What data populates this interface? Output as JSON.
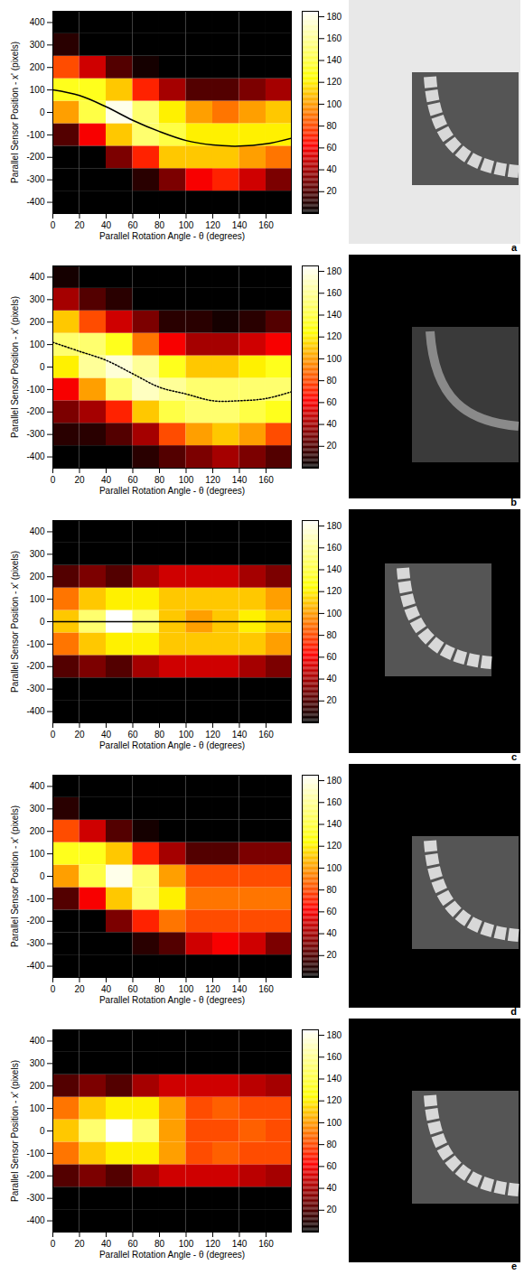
{
  "chart_data": [
    {
      "type": "heatmap",
      "panel_label": "a",
      "x_label": "Parallel Rotation Angle - θ (degrees)",
      "y_label": "Parallel Sensor Position - x' (pixels)",
      "xlim": [
        0,
        179
      ],
      "ylim": [
        -450,
        450
      ],
      "xticks": [
        0,
        20,
        40,
        60,
        80,
        100,
        120,
        140,
        160
      ],
      "yticks": [
        -400,
        -300,
        -200,
        -100,
        0,
        100,
        200,
        300,
        400
      ],
      "x_bins": [
        0,
        20,
        40,
        60,
        80,
        100,
        120,
        140,
        160,
        180
      ],
      "y_bins": [
        -450,
        -350,
        -250,
        -150,
        -50,
        50,
        150,
        250,
        350,
        450
      ],
      "cells": [
        [
          0,
          0,
          0,
          20,
          100,
          130,
          80,
          10,
          0
        ],
        [
          0,
          0,
          0,
          60,
          140,
          130,
          50,
          0,
          0
        ],
        [
          0,
          0,
          30,
          110,
          180,
          110,
          20,
          0,
          0
        ],
        [
          0,
          10,
          70,
          150,
          150,
          70,
          5,
          0,
          0
        ],
        [
          0,
          30,
          110,
          140,
          120,
          40,
          0,
          0,
          0
        ],
        [
          0,
          60,
          110,
          120,
          100,
          20,
          0,
          0,
          0
        ],
        [
          0,
          70,
          110,
          120,
          90,
          20,
          0,
          0,
          0
        ],
        [
          0,
          50,
          100,
          120,
          100,
          30,
          0,
          0,
          0
        ],
        [
          0,
          30,
          90,
          120,
          110,
          40,
          0,
          0,
          0
        ]
      ],
      "colorbar": {
        "lim": [
          0,
          185
        ],
        "ticks": [
          20,
          40,
          60,
          80,
          100,
          120,
          140,
          160,
          180
        ],
        "colors": [
          "#000000",
          "#ff0000",
          "#ffff00",
          "#ffffff"
        ]
      },
      "series": [
        {
          "type": "line",
          "color": "#000000",
          "line_style": "solid",
          "x": [
            0,
            20,
            40,
            60,
            80,
            100,
            120,
            140,
            160,
            179
          ],
          "values": [
            100,
            75,
            25,
            -35,
            -85,
            -125,
            -145,
            -150,
            -140,
            -115
          ]
        }
      ]
    },
    {
      "type": "heatmap",
      "panel_label": "b",
      "x_label": "Parallel Rotation Angle - θ (degrees)",
      "y_label": "Parallel Sensor Position - x' (pixels)",
      "xlim": [
        0,
        179
      ],
      "ylim": [
        -450,
        450
      ],
      "xticks": [
        0,
        20,
        40,
        60,
        80,
        100,
        120,
        140,
        160
      ],
      "yticks": [
        -400,
        -300,
        -200,
        -100,
        0,
        100,
        200,
        300,
        400
      ],
      "x_bins": [
        0,
        20,
        40,
        60,
        80,
        100,
        120,
        140,
        160,
        180
      ],
      "y_bins": [
        -450,
        -350,
        -250,
        -150,
        -50,
        50,
        150,
        250,
        350,
        450
      ],
      "cells": [
        [
          0,
          10,
          30,
          60,
          120,
          150,
          110,
          40,
          5
        ],
        [
          0,
          10,
          40,
          100,
          160,
          150,
          80,
          20,
          0
        ],
        [
          0,
          20,
          70,
          150,
          175,
          130,
          50,
          10,
          0
        ],
        [
          10,
          40,
          110,
          170,
          160,
          90,
          30,
          0,
          0
        ],
        [
          20,
          80,
          140,
          160,
          130,
          60,
          10,
          0,
          0
        ],
        [
          30,
          100,
          150,
          150,
          110,
          40,
          10,
          0,
          0
        ],
        [
          40,
          110,
          150,
          150,
          110,
          40,
          5,
          0,
          0
        ],
        [
          30,
          100,
          140,
          150,
          120,
          50,
          10,
          0,
          0
        ],
        [
          20,
          80,
          130,
          150,
          130,
          60,
          20,
          0,
          0
        ]
      ],
      "colorbar": {
        "lim": [
          0,
          185
        ],
        "ticks": [
          20,
          40,
          60,
          80,
          100,
          120,
          140,
          160,
          180
        ],
        "colors": [
          "#000000",
          "#ff0000",
          "#ffff00",
          "#ffffff"
        ]
      },
      "series": [
        {
          "type": "line",
          "color": "#000000",
          "line_style": "dotted",
          "x": [
            0,
            20,
            40,
            60,
            80,
            100,
            120,
            140,
            160,
            179
          ],
          "values": [
            110,
            70,
            30,
            -30,
            -90,
            -120,
            -150,
            -150,
            -140,
            -110
          ]
        }
      ]
    },
    {
      "type": "heatmap",
      "panel_label": "c",
      "x_label": "Parallel Rotation Angle - θ (degrees)",
      "y_label": "Parallel Sensor Position - x' (pixels)",
      "xlim": [
        0,
        179
      ],
      "ylim": [
        -450,
        450
      ],
      "xticks": [
        0,
        20,
        40,
        60,
        80,
        100,
        120,
        140,
        160
      ],
      "yticks": [
        -400,
        -300,
        -200,
        -100,
        0,
        100,
        200,
        300,
        400
      ],
      "x_bins": [
        0,
        20,
        40,
        60,
        80,
        100,
        120,
        140,
        160,
        180
      ],
      "y_bins": [
        -450,
        -350,
        -250,
        -150,
        -50,
        50,
        150,
        250,
        350,
        450
      ],
      "cells": [
        [
          0,
          0,
          20,
          90,
          110,
          90,
          20,
          0,
          0
        ],
        [
          0,
          0,
          30,
          110,
          150,
          110,
          30,
          0,
          0
        ],
        [
          0,
          0,
          20,
          120,
          185,
          120,
          20,
          0,
          0
        ],
        [
          0,
          0,
          40,
          120,
          150,
          120,
          40,
          0,
          0
        ],
        [
          0,
          0,
          50,
          110,
          110,
          110,
          50,
          0,
          0
        ],
        [
          0,
          0,
          50,
          110,
          100,
          110,
          50,
          0,
          0
        ],
        [
          0,
          0,
          50,
          110,
          110,
          110,
          50,
          0,
          0
        ],
        [
          0,
          0,
          40,
          110,
          120,
          110,
          40,
          0,
          0
        ],
        [
          0,
          0,
          30,
          100,
          110,
          100,
          30,
          0,
          0
        ]
      ],
      "colorbar": {
        "lim": [
          0,
          185
        ],
        "ticks": [
          20,
          40,
          60,
          80,
          100,
          120,
          140,
          160,
          180
        ],
        "colors": [
          "#000000",
          "#ff0000",
          "#ffff00",
          "#ffffff"
        ]
      },
      "series": [
        {
          "type": "line",
          "color": "#000000",
          "line_style": "solid",
          "x": [
            0,
            179
          ],
          "values": [
            0,
            0
          ]
        }
      ]
    },
    {
      "type": "heatmap",
      "panel_label": "d",
      "x_label": "Parallel Rotation Angle - θ (degrees)",
      "y_label": "Parallel Sensor Position - x' (pixels)",
      "xlim": [
        0,
        179
      ],
      "ylim": [
        -450,
        450
      ],
      "xticks": [
        0,
        20,
        40,
        60,
        80,
        100,
        120,
        140,
        160
      ],
      "yticks": [
        -400,
        -300,
        -200,
        -100,
        0,
        100,
        200,
        300,
        400
      ],
      "x_bins": [
        0,
        20,
        40,
        60,
        80,
        100,
        120,
        140,
        160,
        180
      ],
      "y_bins": [
        -450,
        -350,
        -250,
        -150,
        -50,
        50,
        150,
        250,
        350,
        450
      ],
      "cells": [
        [
          0,
          0,
          0,
          20,
          100,
          130,
          80,
          10,
          0
        ],
        [
          0,
          0,
          0,
          60,
          140,
          130,
          50,
          0,
          0
        ],
        [
          0,
          0,
          30,
          110,
          180,
          110,
          20,
          0,
          0
        ],
        [
          0,
          10,
          70,
          150,
          150,
          70,
          5,
          0,
          0
        ],
        [
          0,
          20,
          90,
          120,
          100,
          40,
          0,
          0,
          0
        ],
        [
          0,
          50,
          80,
          90,
          80,
          20,
          0,
          0,
          0
        ],
        [
          0,
          60,
          80,
          90,
          80,
          20,
          0,
          0,
          0
        ],
        [
          0,
          50,
          80,
          90,
          80,
          30,
          0,
          0,
          0
        ],
        [
          0,
          30,
          80,
          90,
          80,
          30,
          0,
          0,
          0
        ]
      ],
      "colorbar": {
        "lim": [
          0,
          185
        ],
        "ticks": [
          20,
          40,
          60,
          80,
          100,
          120,
          140,
          160,
          180
        ],
        "colors": [
          "#000000",
          "#ff0000",
          "#ffff00",
          "#ffffff"
        ]
      }
    },
    {
      "type": "heatmap",
      "panel_label": "e",
      "x_label": "Parallel Rotation Angle - θ (degrees)",
      "y_label": "Parallel Sensor Position - x' (pixels)",
      "xlim": [
        0,
        179
      ],
      "ylim": [
        -450,
        450
      ],
      "xticks": [
        0,
        20,
        40,
        60,
        80,
        100,
        120,
        140,
        160
      ],
      "yticks": [
        -400,
        -300,
        -200,
        -100,
        0,
        100,
        200,
        300,
        400
      ],
      "x_bins": [
        0,
        20,
        40,
        60,
        80,
        100,
        120,
        140,
        160,
        180
      ],
      "y_bins": [
        -450,
        -350,
        -250,
        -150,
        -50,
        50,
        150,
        250,
        350,
        450
      ],
      "cells": [
        [
          0,
          0,
          20,
          90,
          110,
          90,
          20,
          0,
          0
        ],
        [
          0,
          0,
          30,
          110,
          150,
          110,
          30,
          0,
          0
        ],
        [
          0,
          0,
          20,
          120,
          185,
          120,
          20,
          0,
          0
        ],
        [
          0,
          0,
          40,
          120,
          150,
          120,
          40,
          0,
          0
        ],
        [
          0,
          0,
          50,
          100,
          100,
          100,
          50,
          0,
          0
        ],
        [
          0,
          0,
          50,
          80,
          80,
          80,
          50,
          0,
          0
        ],
        [
          0,
          0,
          50,
          85,
          80,
          85,
          50,
          0,
          0
        ],
        [
          0,
          0,
          45,
          80,
          85,
          80,
          45,
          0,
          0
        ],
        [
          0,
          0,
          40,
          80,
          80,
          80,
          40,
          0,
          0
        ]
      ],
      "colorbar": {
        "lim": [
          0,
          185
        ],
        "ticks": [
          20,
          40,
          60,
          80,
          100,
          120,
          140,
          160,
          180
        ],
        "colors": [
          "#000000",
          "#ff0000",
          "#ffff00",
          "#ffffff"
        ]
      }
    }
  ]
}
